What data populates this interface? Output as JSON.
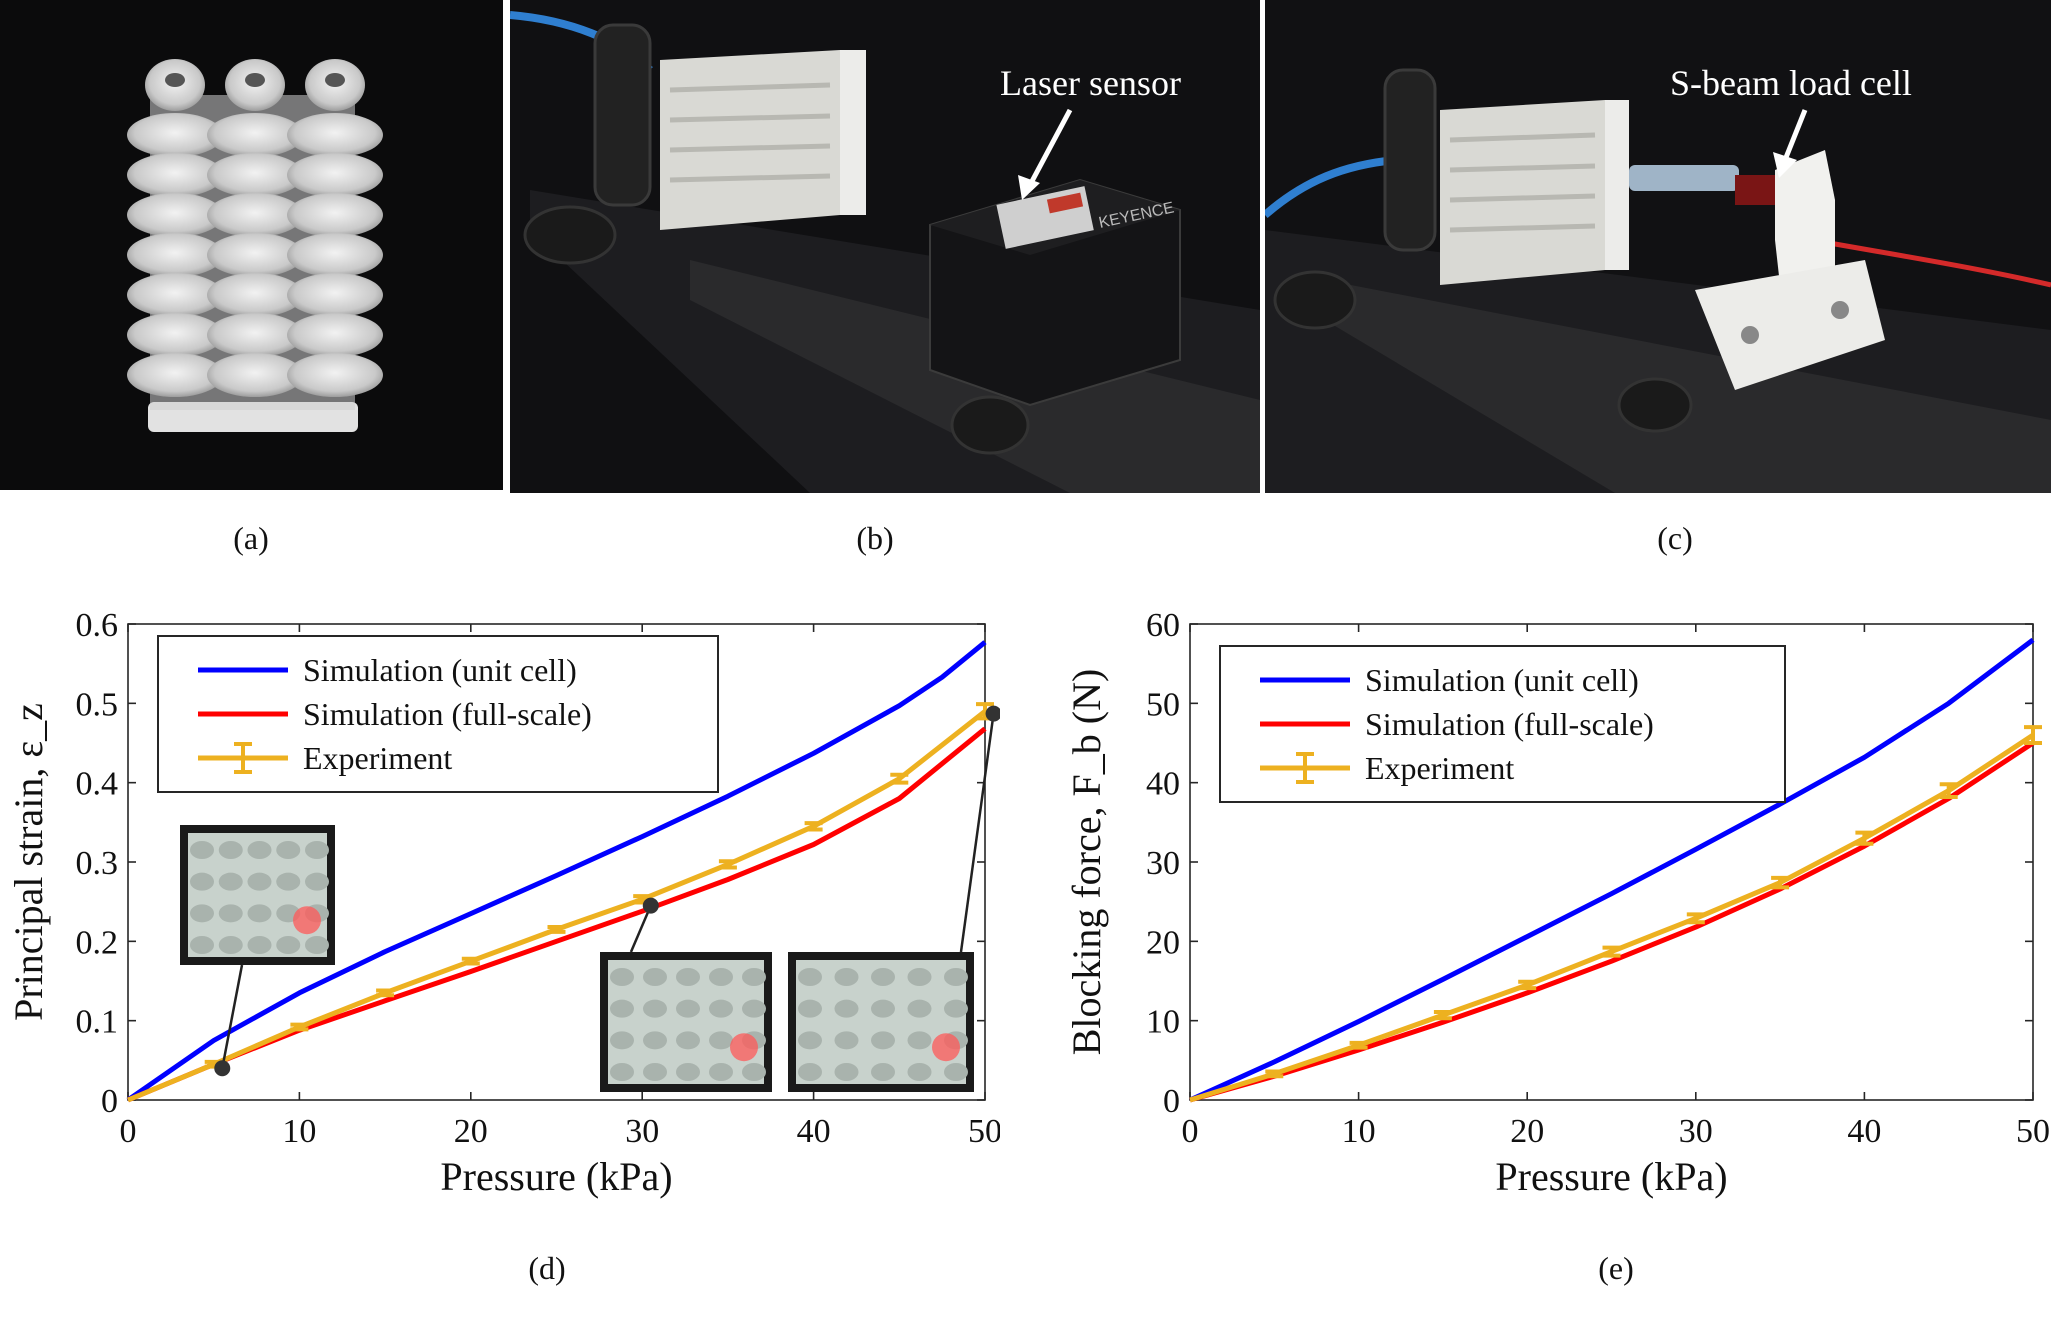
{
  "panels": {
    "a": "(a)",
    "b": "(b)",
    "c": "(c)",
    "d": "(d)",
    "e": "(e)"
  },
  "photo_b": {
    "annotation": "Laser sensor",
    "device_brand": "KEYENCE"
  },
  "photo_c": {
    "annotation": "S-beam load cell"
  },
  "colors": {
    "sim_unit": "#0000ff",
    "sim_full": "#ff0000",
    "experiment": "#edb120"
  },
  "chart_data": [
    {
      "type": "line",
      "panel": "(d)",
      "xlabel": "Pressure (kPa)",
      "ylabel": "Principal strain, ε_z",
      "xlim": [
        0,
        50
      ],
      "ylim": [
        0,
        0.6
      ],
      "xticks": [
        "0",
        "10",
        "20",
        "30",
        "40",
        "50"
      ],
      "yticks": [
        "0",
        "0.1",
        "0.2",
        "0.3",
        "0.4",
        "0.5",
        "0.6"
      ],
      "legend_position": "top-left",
      "grid": false,
      "series": [
        {
          "name": "Simulation (unit cell)",
          "color": "#0000ff",
          "x": [
            0,
            5,
            10,
            15,
            20,
            25,
            30,
            35,
            40,
            45,
            47.5,
            50
          ],
          "y": [
            0,
            0.075,
            0.135,
            0.187,
            0.235,
            0.283,
            0.332,
            0.383,
            0.437,
            0.497,
            0.533,
            0.577
          ]
        },
        {
          "name": "Simulation (full-scale)",
          "color": "#ff0000",
          "x": [
            0,
            5,
            10,
            15,
            20,
            25,
            30,
            35,
            40,
            45,
            50
          ],
          "y": [
            0,
            0.045,
            0.088,
            0.125,
            0.162,
            0.2,
            0.238,
            0.278,
            0.322,
            0.38,
            0.468
          ]
        },
        {
          "name": "Experiment",
          "color": "#edb120",
          "error_bars": true,
          "x": [
            0,
            5,
            10,
            15,
            20,
            25,
            30,
            35,
            40,
            45,
            50
          ],
          "y": [
            0,
            0.045,
            0.092,
            0.135,
            0.175,
            0.215,
            0.253,
            0.297,
            0.345,
            0.405,
            0.49
          ],
          "err": [
            0,
            0.003,
            0.003,
            0.003,
            0.003,
            0.003,
            0.004,
            0.004,
            0.004,
            0.005,
            0.009
          ]
        }
      ],
      "markers": [
        {
          "x": 5.5,
          "y": 0.04
        },
        {
          "x": 30.5,
          "y": 0.245
        },
        {
          "x": 50.5,
          "y": 0.487
        }
      ]
    },
    {
      "type": "line",
      "panel": "(e)",
      "xlabel": "Pressure (kPa)",
      "ylabel": "Blocking force, F_b (N)",
      "xlim": [
        0,
        50
      ],
      "ylim": [
        0,
        60
      ],
      "xticks": [
        "0",
        "10",
        "20",
        "30",
        "40",
        "50"
      ],
      "yticks": [
        "0",
        "10",
        "20",
        "30",
        "40",
        "50",
        "60"
      ],
      "legend_position": "top-left",
      "grid": false,
      "series": [
        {
          "name": "Simulation (unit cell)",
          "color": "#0000ff",
          "x": [
            0,
            5,
            10,
            15,
            20,
            25,
            30,
            35,
            40,
            45,
            50
          ],
          "y": [
            0,
            4.8,
            9.9,
            15.2,
            20.6,
            26.0,
            31.6,
            37.3,
            43.2,
            50.0,
            58.0
          ]
        },
        {
          "name": "Simulation (full-scale)",
          "color": "#ff0000",
          "x": [
            0,
            5,
            10,
            15,
            20,
            25,
            30,
            35,
            40,
            45,
            50
          ],
          "y": [
            0,
            3.0,
            6.3,
            9.8,
            13.5,
            17.5,
            21.8,
            26.6,
            32.0,
            38.0,
            45.0
          ]
        },
        {
          "name": "Experiment",
          "color": "#edb120",
          "error_bars": true,
          "x": [
            0,
            5,
            10,
            15,
            20,
            25,
            30,
            35,
            40,
            45,
            50
          ],
          "y": [
            0,
            3.3,
            6.9,
            10.7,
            14.5,
            18.7,
            22.9,
            27.4,
            33.0,
            39.0,
            46.0
          ],
          "err": [
            0,
            0.3,
            0.3,
            0.4,
            0.4,
            0.5,
            0.5,
            0.6,
            0.7,
            0.8,
            1.0
          ]
        }
      ]
    }
  ]
}
